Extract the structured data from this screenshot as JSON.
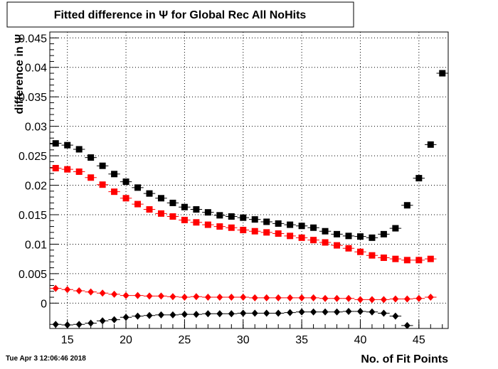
{
  "chart_data": {
    "type": "scatter",
    "title": "Fitted difference in  Ψ  for Global Rec All NoHits",
    "x_label": "No. of Fit Points",
    "y_label": "difference in Ψ",
    "timestamp": "Tue Apr  3 12:06:46 2018",
    "x": [
      14,
      15,
      16,
      17,
      18,
      19,
      20,
      21,
      22,
      23,
      24,
      25,
      26,
      27,
      28,
      29,
      30,
      31,
      32,
      33,
      34,
      35,
      36,
      37,
      38,
      39,
      40,
      41,
      42,
      43,
      44,
      45,
      46,
      47
    ],
    "series": [
      {
        "color": "#000000",
        "marker": "square",
        "values": [
          0.0271,
          0.0268,
          0.0261,
          0.0247,
          0.0233,
          0.0219,
          0.0206,
          0.0196,
          0.0186,
          0.0178,
          0.017,
          0.0163,
          0.0159,
          0.0154,
          0.0149,
          0.0147,
          0.0145,
          0.0142,
          0.0138,
          0.0135,
          0.0133,
          0.0131,
          0.0128,
          0.0122,
          0.0117,
          0.0114,
          0.0113,
          0.0111,
          0.0117,
          0.0127,
          0.0166,
          0.0212,
          0.0269,
          0.039
        ]
      },
      {
        "color": "#ff0000",
        "marker": "square",
        "values": [
          0.0229,
          0.0227,
          0.0223,
          0.0213,
          0.0201,
          0.0189,
          0.0178,
          0.0168,
          0.0159,
          0.0152,
          0.0147,
          0.0141,
          0.0137,
          0.0133,
          0.013,
          0.0128,
          0.0124,
          0.0122,
          0.012,
          0.0118,
          0.0114,
          0.0111,
          0.0107,
          0.0103,
          0.0098,
          0.0093,
          0.0087,
          0.0081,
          0.0077,
          0.0075,
          0.0073,
          0.0073,
          0.0075,
          null
        ]
      },
      {
        "color": "#ff0000",
        "marker": "diamond",
        "values": [
          0.0025,
          0.0023,
          0.0021,
          0.0019,
          0.0017,
          0.0015,
          0.0013,
          0.0013,
          0.0012,
          0.0012,
          0.0011,
          0.001,
          0.0011,
          0.001,
          0.001,
          0.001,
          0.001,
          0.0009,
          0.0009,
          0.0009,
          0.0009,
          0.0009,
          0.0009,
          0.0008,
          0.0008,
          0.0008,
          0.0006,
          0.0006,
          0.0006,
          0.0007,
          0.0007,
          0.0008,
          0.001,
          null
        ]
      },
      {
        "color": "#000000",
        "marker": "diamond",
        "values": [
          -0.0036,
          -0.0037,
          -0.0036,
          -0.0034,
          -0.003,
          -0.0028,
          -0.0024,
          -0.0022,
          -0.0021,
          -0.002,
          -0.002,
          -0.0019,
          -0.0019,
          -0.0018,
          -0.0018,
          -0.0018,
          -0.0017,
          -0.0017,
          -0.0017,
          -0.0017,
          -0.0016,
          -0.0015,
          -0.0015,
          -0.0015,
          -0.0015,
          -0.0014,
          -0.0014,
          -0.0015,
          -0.0017,
          -0.0022,
          -0.0038,
          null,
          null,
          null
        ]
      }
    ],
    "xlim": [
      13.5,
      47.5
    ],
    "ylim": [
      -0.0043,
      0.046
    ],
    "xticks": [
      15,
      20,
      25,
      30,
      35,
      40,
      45
    ],
    "yticks": [
      0,
      0.005,
      0.01,
      0.015,
      0.02,
      0.025,
      0.03,
      0.035,
      0.04,
      0.045
    ],
    "grid": true
  }
}
